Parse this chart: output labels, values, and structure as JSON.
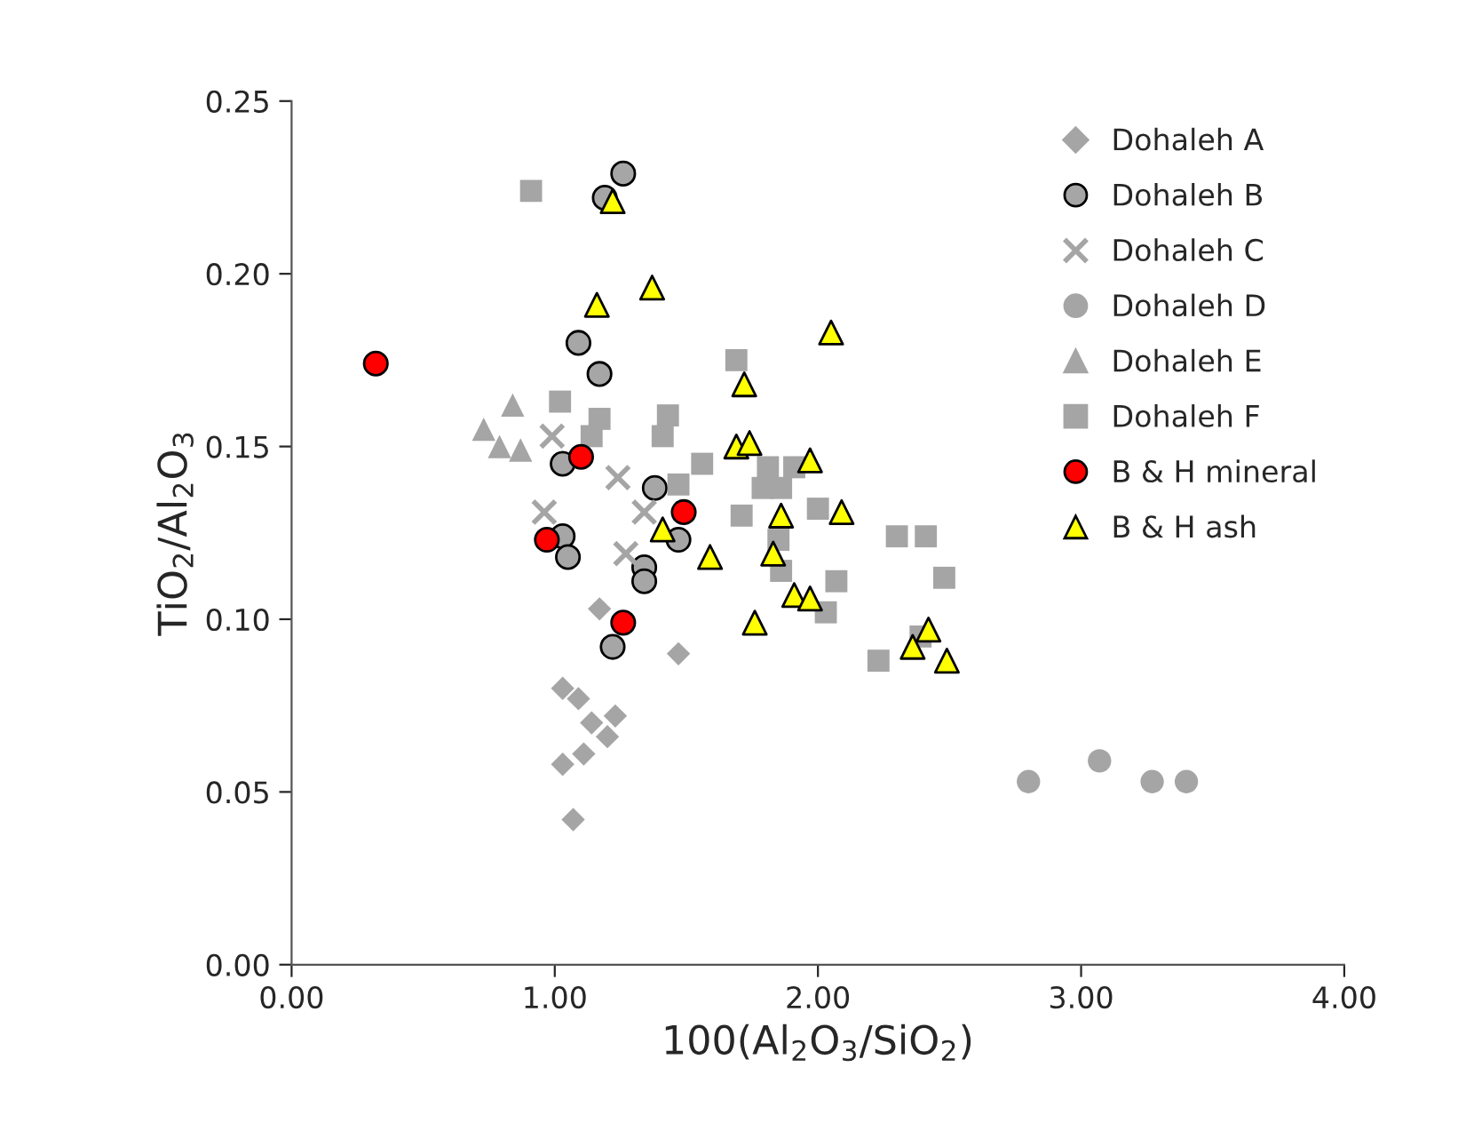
{
  "chart_data": {
    "type": "scatter",
    "xlabel": "100(Al$_{2}$O$_{3}$/SiO$_{2}$)",
    "ylabel": "TiO$_{2}$/Al$_{2}$O$_{3}$",
    "xlim": [
      0,
      4
    ],
    "ylim": [
      0,
      0.25
    ],
    "xticks": [
      {
        "value": 0,
        "label": "0.00"
      },
      {
        "value": 1,
        "label": "1.00"
      },
      {
        "value": 2,
        "label": "2.00"
      },
      {
        "value": 3,
        "label": "3.00"
      },
      {
        "value": 4,
        "label": "4.00"
      }
    ],
    "yticks": [
      {
        "value": 0,
        "label": "0.00"
      },
      {
        "value": 0.05,
        "label": "0.05"
      },
      {
        "value": 0.1,
        "label": "0.10"
      },
      {
        "value": 0.15,
        "label": "0.15"
      },
      {
        "value": 0.2,
        "label": "0.20"
      },
      {
        "value": 0.25,
        "label": "0.25"
      }
    ],
    "grid": false,
    "legend": "top right",
    "series": [
      {
        "name": "Dohaleh A",
        "color": "#a5a5a5",
        "marker": "diamond",
        "x": [
          1.17,
          1.47,
          1.03,
          1.09,
          1.14,
          1.23,
          1.2,
          1.03,
          1.11,
          1.07
        ],
        "values": [
          0.103,
          0.09,
          0.08,
          0.077,
          0.07,
          0.072,
          0.066,
          0.058,
          0.061,
          0.042
        ]
      },
      {
        "name": "Dohaleh B",
        "color": "#a6a6a6",
        "marker": "circle",
        "x": [
          1.26,
          1.19,
          1.09,
          1.17,
          1.03,
          1.38,
          1.03,
          1.05,
          1.47,
          1.34,
          1.34,
          1.22
        ],
        "values": [
          0.229,
          0.222,
          0.18,
          0.171,
          0.145,
          0.138,
          0.124,
          0.118,
          0.123,
          0.115,
          0.111,
          0.092
        ]
      },
      {
        "name": "Dohaleh C",
        "color": "#a5a5a5",
        "marker": "cross",
        "x": [
          0.99,
          1.24,
          0.96,
          1.34,
          1.27
        ],
        "values": [
          0.153,
          0.141,
          0.131,
          0.131,
          0.119
        ]
      },
      {
        "name": "Dohaleh D",
        "color": "#a5a5a5",
        "marker": "circle",
        "x": [
          2.8,
          3.07,
          3.27,
          3.4
        ],
        "values": [
          0.053,
          0.059,
          0.053,
          0.053
        ]
      },
      {
        "name": "Dohaleh E",
        "color": "#a5a5a5",
        "marker": "triangle",
        "x": [
          0.73,
          0.84,
          0.79,
          0.87
        ],
        "values": [
          0.155,
          0.162,
          0.15,
          0.149
        ]
      },
      {
        "name": "Dohaleh F",
        "color": "#a5a5a5",
        "marker": "square",
        "x": [
          0.91,
          1.02,
          1.17,
          1.14,
          1.43,
          1.41,
          1.56,
          1.69,
          1.47,
          1.71,
          1.81,
          1.91,
          1.79,
          1.86,
          2.0,
          1.85,
          1.86,
          2.07,
          2.03,
          2.3,
          2.41,
          2.48,
          2.23,
          2.39
        ],
        "values": [
          0.224,
          0.163,
          0.158,
          0.153,
          0.159,
          0.153,
          0.145,
          0.175,
          0.139,
          0.13,
          0.144,
          0.144,
          0.138,
          0.138,
          0.132,
          0.123,
          0.114,
          0.111,
          0.102,
          0.124,
          0.124,
          0.112,
          0.088,
          0.095
        ]
      },
      {
        "name": "B & H mineral",
        "color": "#ff0000",
        "marker": "circle",
        "x": [
          0.32,
          1.1,
          0.97,
          1.49,
          1.26
        ],
        "values": [
          0.174,
          0.147,
          0.123,
          0.131,
          0.099
        ]
      },
      {
        "name": "B & H ash",
        "color": "#ffff00",
        "marker": "triangle",
        "x": [
          1.22,
          1.37,
          1.16,
          1.72,
          1.69,
          1.74,
          1.41,
          1.59,
          1.76,
          2.05,
          1.97,
          1.86,
          2.09,
          1.83,
          1.91,
          1.97,
          2.36,
          2.42,
          2.49
        ],
        "values": [
          0.221,
          0.196,
          0.191,
          0.168,
          0.15,
          0.151,
          0.126,
          0.118,
          0.099,
          0.183,
          0.146,
          0.13,
          0.131,
          0.119,
          0.107,
          0.106,
          0.092,
          0.097,
          0.088
        ]
      }
    ]
  }
}
